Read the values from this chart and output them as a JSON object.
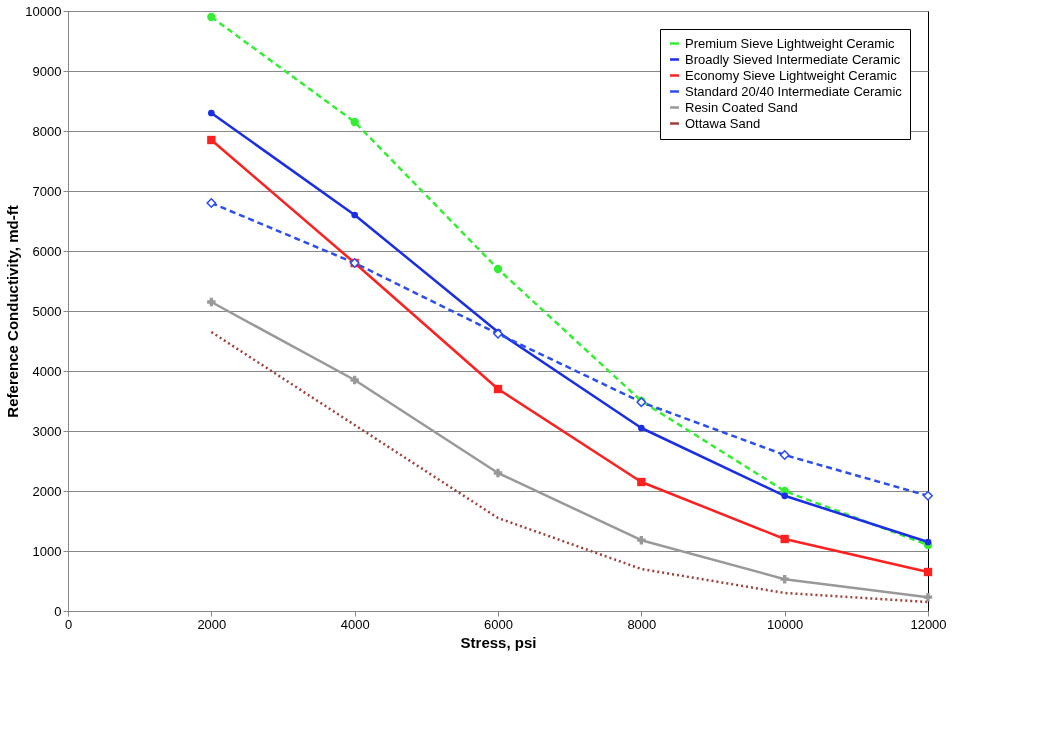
{
  "chart_data": {
    "type": "line",
    "xlabel": "Stress, psi",
    "ylabel": "Reference Conductivity, md-ft",
    "x": [
      2000,
      4000,
      6000,
      8000,
      10000,
      12000
    ],
    "series": [
      {
        "name": "Premium Sieve Lightweight Ceramic",
        "color": "#33ee33",
        "marker": "circle",
        "line_style": "dashed",
        "values": [
          9900,
          8150,
          5700,
          3500,
          2000,
          1100
        ]
      },
      {
        "name": "Broadly Sieved Intermediate Ceramic",
        "color": "#1a2ee6",
        "marker": "circle",
        "line_style": "solid",
        "values": [
          8300,
          6600,
          4650,
          3050,
          1920,
          1150
        ]
      },
      {
        "name": "Economy Sieve Lightweight Ceramic",
        "color": "#ff2020",
        "marker": "square",
        "line_style": "solid",
        "values": [
          7850,
          5800,
          3700,
          2150,
          1200,
          650
        ]
      },
      {
        "name": "Standard 20/40 Intermediate Ceramic",
        "color": "#2a4ef0",
        "marker": "diamond",
        "line_style": "dashed",
        "values": [
          6800,
          5800,
          4620,
          3480,
          2600,
          1920
        ]
      },
      {
        "name": "Resin Coated Sand",
        "color": "#999999",
        "marker": "cross",
        "line_style": "solid",
        "values": [
          5150,
          3850,
          2300,
          1180,
          530,
          230
        ]
      },
      {
        "name": "Ottawa Sand",
        "color": "#a0403a",
        "marker": "none",
        "line_style": "dotted",
        "values": [
          4650,
          3100,
          1550,
          700,
          300,
          150
        ]
      }
    ],
    "xlim": [
      0,
      12000
    ],
    "xticks": [
      0,
      2000,
      4000,
      6000,
      8000,
      10000,
      12000
    ],
    "ylim": [
      0,
      10000
    ],
    "yticks": [
      0,
      1000,
      2000,
      3000,
      4000,
      5000,
      6000,
      7000,
      8000,
      9000,
      10000
    ],
    "grid": "y",
    "legend": "top right"
  }
}
